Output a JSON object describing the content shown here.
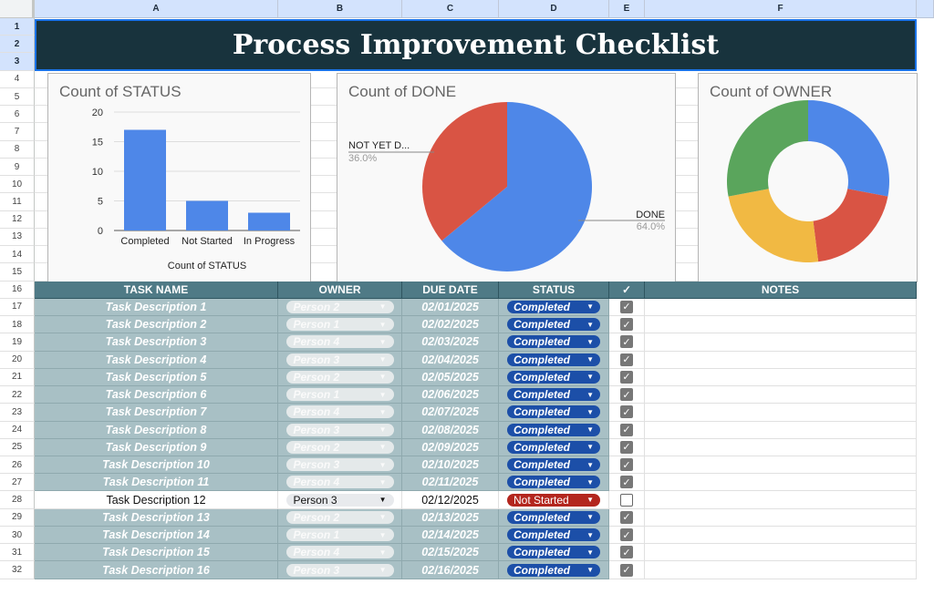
{
  "columns": [
    "A",
    "B",
    "C",
    "D",
    "E",
    "F"
  ],
  "title": "Process Improvement Checklist",
  "colors": {
    "title_bg": "#18333d",
    "header_bg": "#4f7a86",
    "done_row": "#a8c0c5",
    "completed": "#1c4fa8",
    "not_started": "#b3261e",
    "blue": "#4e87e8",
    "red": "#d95444",
    "yellow": "#f1b943",
    "green": "#5aa55c"
  },
  "chart_data": [
    {
      "type": "bar",
      "title": "Count of STATUS",
      "xlabel": "Count of STATUS",
      "ylabel": "",
      "categories": [
        "Completed",
        "Not Started",
        "In Progress"
      ],
      "values": [
        17,
        5,
        3
      ],
      "ylim": [
        0,
        20
      ],
      "yticks": [
        0,
        5,
        10,
        15,
        20
      ],
      "grid": true
    },
    {
      "type": "pie",
      "title": "Count of DONE",
      "labels": [
        "DONE",
        "NOT YET D..."
      ],
      "values": [
        64.0,
        36.0
      ],
      "value_labels": [
        "64.0%",
        "36.0%"
      ]
    },
    {
      "type": "pie",
      "donut": true,
      "title": "Count of OWNER",
      "values": [
        7,
        5,
        6,
        7
      ],
      "legend": "none"
    }
  ],
  "table": {
    "headers": [
      "TASK NAME",
      "OWNER",
      "DUE DATE",
      "STATUS",
      "✓",
      "NOTES"
    ],
    "rows": [
      {
        "task": "Task Description 1",
        "owner": "Person 2",
        "due": "02/01/2025",
        "status": "Completed",
        "done": true
      },
      {
        "task": "Task Description 2",
        "owner": "Person 1",
        "due": "02/02/2025",
        "status": "Completed",
        "done": true
      },
      {
        "task": "Task Description 3",
        "owner": "Person 4",
        "due": "02/03/2025",
        "status": "Completed",
        "done": true
      },
      {
        "task": "Task Description 4",
        "owner": "Person 3",
        "due": "02/04/2025",
        "status": "Completed",
        "done": true
      },
      {
        "task": "Task Description 5",
        "owner": "Person 2",
        "due": "02/05/2025",
        "status": "Completed",
        "done": true
      },
      {
        "task": "Task Description 6",
        "owner": "Person 1",
        "due": "02/06/2025",
        "status": "Completed",
        "done": true
      },
      {
        "task": "Task Description 7",
        "owner": "Person 4",
        "due": "02/07/2025",
        "status": "Completed",
        "done": true
      },
      {
        "task": "Task Description 8",
        "owner": "Person 3",
        "due": "02/08/2025",
        "status": "Completed",
        "done": true
      },
      {
        "task": "Task Description 9",
        "owner": "Person 2",
        "due": "02/09/2025",
        "status": "Completed",
        "done": true
      },
      {
        "task": "Task Description 10",
        "owner": "Person 3",
        "due": "02/10/2025",
        "status": "Completed",
        "done": true
      },
      {
        "task": "Task Description 11",
        "owner": "Person 4",
        "due": "02/11/2025",
        "status": "Completed",
        "done": true
      },
      {
        "task": "Task Description 12",
        "owner": "Person 3",
        "due": "02/12/2025",
        "status": "Not Started",
        "done": false
      },
      {
        "task": "Task Description 13",
        "owner": "Person 2",
        "due": "02/13/2025",
        "status": "Completed",
        "done": true
      },
      {
        "task": "Task Description 14",
        "owner": "Person 1",
        "due": "02/14/2025",
        "status": "Completed",
        "done": true
      },
      {
        "task": "Task Description 15",
        "owner": "Person 4",
        "due": "02/15/2025",
        "status": "Completed",
        "done": true
      },
      {
        "task": "Task Description 16",
        "owner": "Person 3",
        "due": "02/16/2025",
        "status": "Completed",
        "done": true
      }
    ]
  }
}
